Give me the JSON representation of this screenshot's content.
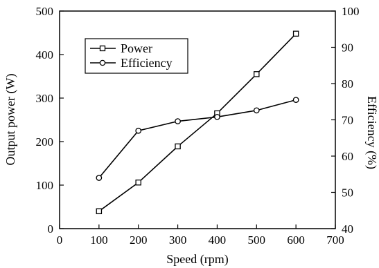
{
  "chart_data": {
    "type": "line",
    "xlabel": "Speed (rpm)",
    "ylabel": "Output power (W)",
    "y2label": "Efficiency (%)",
    "xlim": [
      0,
      700
    ],
    "ylim": [
      0,
      500
    ],
    "y2lim": [
      40,
      100
    ],
    "x_ticks": [
      0,
      100,
      200,
      300,
      400,
      500,
      600,
      700
    ],
    "y_ticks": [
      0,
      100,
      200,
      300,
      400,
      500
    ],
    "y2_ticks": [
      40,
      50,
      60,
      70,
      80,
      90,
      100
    ],
    "grid": false,
    "legend": "upper-left, inside plot",
    "x": [
      100,
      200,
      300,
      400,
      500,
      600
    ],
    "series": [
      {
        "name": "Power",
        "axis": "left",
        "marker": "square",
        "values": [
          40,
          106,
          189,
          265,
          355,
          448
        ]
      },
      {
        "name": "Efficiency",
        "axis": "right",
        "marker": "circle",
        "values": [
          54,
          67,
          69.6,
          70.8,
          72.6,
          75.5
        ]
      }
    ]
  }
}
